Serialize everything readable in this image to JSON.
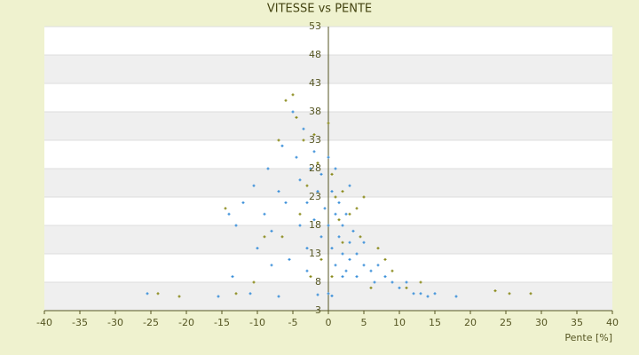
{
  "chart_data": {
    "type": "scatter",
    "title": "VITESSE vs PENTE",
    "x_label": "Pente [%]",
    "xlim": [
      -40,
      40
    ],
    "xticks": [
      -40,
      -35,
      -30,
      -25,
      -20,
      -15,
      -10,
      -5,
      0,
      5,
      10,
      15,
      20,
      25,
      30,
      35,
      40
    ],
    "ylim": [
      3,
      53
    ],
    "yticks": [
      3,
      8,
      13,
      18,
      23,
      28,
      33,
      38,
      43,
      48,
      53
    ],
    "grid": true,
    "series": [
      {
        "color": "#3a8fd9",
        "x": [
          -25.5,
          -15.5,
          -14,
          -13,
          -12,
          -10.5,
          -10,
          -9,
          -8.5,
          -8,
          -7,
          -6.5,
          -6,
          -5.5,
          -5,
          -4.5,
          -4,
          -4,
          -3.5,
          -3,
          -3,
          -2.5,
          -2,
          -2,
          -1.5,
          -1,
          -1,
          -0.5,
          0,
          0,
          0,
          0.5,
          0.5,
          1,
          1,
          1.5,
          1.5,
          2,
          2,
          2.5,
          2.5,
          3,
          3,
          3.5,
          4,
          4,
          5,
          5,
          6,
          6.5,
          7,
          8,
          9,
          10,
          11,
          12,
          13,
          14,
          15,
          18,
          -13.5,
          -11,
          -7,
          -1.5,
          0.5,
          2,
          3,
          1,
          -3,
          -8
        ],
        "values": [
          6,
          5.5,
          20,
          18,
          22,
          25,
          14,
          20,
          28,
          17,
          24,
          32,
          22,
          12,
          38,
          30,
          26,
          18,
          35,
          22,
          14,
          28,
          31,
          19,
          24,
          27,
          16,
          21,
          30,
          18,
          6,
          24,
          14,
          20,
          11,
          22,
          16,
          18,
          13,
          20,
          10,
          15,
          12,
          17,
          13,
          9,
          11,
          15,
          10,
          8,
          11,
          9,
          8,
          7,
          8,
          6,
          6,
          5.5,
          6,
          5.5,
          9,
          6,
          5.5,
          5.8,
          5.6,
          9,
          25,
          28,
          10,
          11
        ]
      },
      {
        "color": "#8a8a1a",
        "x": [
          -24,
          -21,
          -13,
          -10.5,
          -9,
          -7,
          -6,
          -5,
          -4.5,
          -3.5,
          -3,
          -2,
          -1.5,
          -1,
          0,
          0.5,
          1,
          1.5,
          2,
          3,
          4,
          4.5,
          5,
          7,
          8,
          9,
          11,
          13,
          23.5,
          25.5,
          28.5,
          -14.5,
          -6.5,
          -2.5,
          0.5,
          6,
          -4,
          2
        ],
        "values": [
          6,
          5.5,
          6,
          8,
          16,
          33,
          40,
          41,
          37,
          33,
          25,
          34,
          29,
          12,
          36,
          27,
          23,
          19,
          24,
          20,
          21,
          16,
          23,
          14,
          12,
          10,
          7,
          8,
          6.5,
          6,
          6,
          21,
          16,
          9,
          9,
          7,
          20,
          15
        ]
      }
    ]
  }
}
